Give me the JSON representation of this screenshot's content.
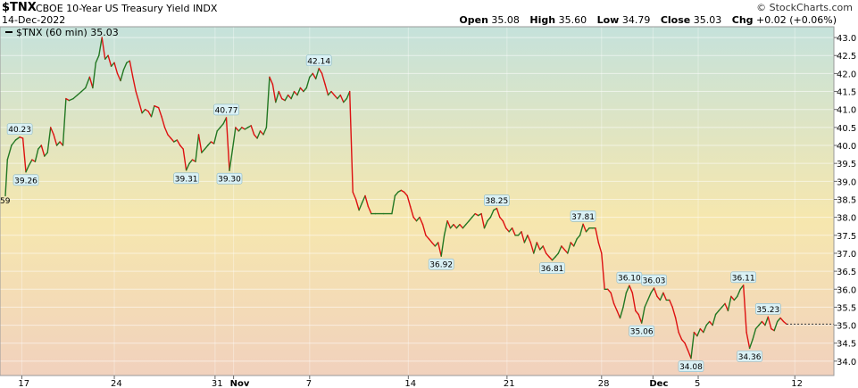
{
  "header": {
    "symbol": "$TNX",
    "name": "CBOE 10-Year US Treasury Yield",
    "exchange": "INDX",
    "date": "14-Dec-2022",
    "watermark": "© StockCharts.com",
    "open_label": "Open",
    "open": "35.08",
    "high_label": "High",
    "high": "35.60",
    "low_label": "Low",
    "low": "34.79",
    "close_label": "Close",
    "close": "35.03",
    "chg_label": "Chg",
    "chg": "+0.02 (+0.06%)"
  },
  "legend": {
    "text": "$TNX (60 min) 35.03"
  },
  "colors": {
    "up": "#227722",
    "down": "#dd1111",
    "bg_top": "#c5e2db",
    "bg_mid": "#f6e7ae",
    "bg_bottom": "#f1d1bd",
    "label_bg": "#daf1f5",
    "label_border": "#88b7c8"
  },
  "chart_data": {
    "type": "line",
    "title": "$TNX (60 min) 35.03",
    "ylim": [
      33.6,
      43.3
    ],
    "y_ticks": [
      "34.0",
      "34.5",
      "35.0",
      "35.5",
      "36.0",
      "36.5",
      "37.0",
      "37.5",
      "38.0",
      "38.5",
      "39.0",
      "39.5",
      "40.0",
      "40.5",
      "41.0",
      "41.5",
      "42.0",
      "42.5",
      "43.0"
    ],
    "x_labels": [
      {
        "label": "17",
        "bold": false,
        "x": 0.8
      },
      {
        "label": "24",
        "bold": false,
        "x": 5.3
      },
      {
        "label": "31",
        "bold": false,
        "x": 10.2
      },
      {
        "label": "Nov",
        "bold": true,
        "x": 11.1
      },
      {
        "label": "7",
        "bold": false,
        "x": 14.8
      },
      {
        "label": "14",
        "bold": false,
        "x": 19.6
      },
      {
        "label": "21",
        "bold": false,
        "x": 24.4
      },
      {
        "label": "28",
        "bold": false,
        "x": 29.0
      },
      {
        "label": "Dec",
        "bold": true,
        "x": 31.5
      },
      {
        "label": "5",
        "bold": false,
        "x": 33.7
      },
      {
        "label": "12",
        "bold": false,
        "x": 38.4
      }
    ],
    "x_range": [
      0,
      40.3
    ],
    "points": [
      [
        0.0,
        38.6
      ],
      [
        0.1,
        39.6
      ],
      [
        0.3,
        40.0
      ],
      [
        0.5,
        40.15
      ],
      [
        0.7,
        40.23
      ],
      [
        0.85,
        40.2
      ],
      [
        1.0,
        39.26
      ],
      [
        1.15,
        39.45
      ],
      [
        1.3,
        39.6
      ],
      [
        1.45,
        39.55
      ],
      [
        1.6,
        39.9
      ],
      [
        1.75,
        40.0
      ],
      [
        1.9,
        39.7
      ],
      [
        2.05,
        39.8
      ],
      [
        2.2,
        40.5
      ],
      [
        2.35,
        40.3
      ],
      [
        2.5,
        40.0
      ],
      [
        2.65,
        40.1
      ],
      [
        2.8,
        40.0
      ],
      [
        2.95,
        41.3
      ],
      [
        3.1,
        41.25
      ],
      [
        3.3,
        41.3
      ],
      [
        3.5,
        41.4
      ],
      [
        3.7,
        41.5
      ],
      [
        3.9,
        41.6
      ],
      [
        4.1,
        41.9
      ],
      [
        4.25,
        41.6
      ],
      [
        4.4,
        42.3
      ],
      [
        4.55,
        42.5
      ],
      [
        4.7,
        43.0
      ],
      [
        4.85,
        42.4
      ],
      [
        5.0,
        42.5
      ],
      [
        5.15,
        42.2
      ],
      [
        5.3,
        42.3
      ],
      [
        5.45,
        42.0
      ],
      [
        5.6,
        41.8
      ],
      [
        5.75,
        42.1
      ],
      [
        5.9,
        42.3
      ],
      [
        6.05,
        42.35
      ],
      [
        6.2,
        41.9
      ],
      [
        6.35,
        41.5
      ],
      [
        6.5,
        41.2
      ],
      [
        6.65,
        40.9
      ],
      [
        6.8,
        41.0
      ],
      [
        6.95,
        40.95
      ],
      [
        7.1,
        40.8
      ],
      [
        7.25,
        41.1
      ],
      [
        7.45,
        41.05
      ],
      [
        7.6,
        40.8
      ],
      [
        7.75,
        40.5
      ],
      [
        7.9,
        40.3
      ],
      [
        8.05,
        40.2
      ],
      [
        8.2,
        40.1
      ],
      [
        8.35,
        40.15
      ],
      [
        8.5,
        40.0
      ],
      [
        8.65,
        39.9
      ],
      [
        8.8,
        39.31
      ],
      [
        8.95,
        39.5
      ],
      [
        9.1,
        39.6
      ],
      [
        9.25,
        39.55
      ],
      [
        9.4,
        40.3
      ],
      [
        9.55,
        39.8
      ],
      [
        9.7,
        39.9
      ],
      [
        9.85,
        40.0
      ],
      [
        10.0,
        40.1
      ],
      [
        10.15,
        40.05
      ],
      [
        10.3,
        40.4
      ],
      [
        10.45,
        40.5
      ],
      [
        10.6,
        40.6
      ],
      [
        10.75,
        40.77
      ],
      [
        10.9,
        39.3
      ],
      [
        11.05,
        39.9
      ],
      [
        11.2,
        40.5
      ],
      [
        11.35,
        40.4
      ],
      [
        11.5,
        40.5
      ],
      [
        11.65,
        40.45
      ],
      [
        11.8,
        40.5
      ],
      [
        11.95,
        40.55
      ],
      [
        12.1,
        40.3
      ],
      [
        12.25,
        40.2
      ],
      [
        12.4,
        40.4
      ],
      [
        12.55,
        40.3
      ],
      [
        12.7,
        40.5
      ],
      [
        12.85,
        41.9
      ],
      [
        13.0,
        41.7
      ],
      [
        13.15,
        41.2
      ],
      [
        13.3,
        41.5
      ],
      [
        13.45,
        41.3
      ],
      [
        13.6,
        41.25
      ],
      [
        13.75,
        41.4
      ],
      [
        13.9,
        41.3
      ],
      [
        14.05,
        41.5
      ],
      [
        14.2,
        41.4
      ],
      [
        14.35,
        41.6
      ],
      [
        14.5,
        41.5
      ],
      [
        14.65,
        41.6
      ],
      [
        14.8,
        41.9
      ],
      [
        14.95,
        42.0
      ],
      [
        15.1,
        41.85
      ],
      [
        15.25,
        42.14
      ],
      [
        15.4,
        42.0
      ],
      [
        15.55,
        41.7
      ],
      [
        15.7,
        41.4
      ],
      [
        15.85,
        41.5
      ],
      [
        16.0,
        41.4
      ],
      [
        16.15,
        41.3
      ],
      [
        16.3,
        41.4
      ],
      [
        16.45,
        41.2
      ],
      [
        16.6,
        41.3
      ],
      [
        16.75,
        41.5
      ],
      [
        16.9,
        38.7
      ],
      [
        17.05,
        38.5
      ],
      [
        17.2,
        38.2
      ],
      [
        17.35,
        38.4
      ],
      [
        17.5,
        38.6
      ],
      [
        17.65,
        38.3
      ],
      [
        17.8,
        38.1
      ],
      [
        18.0,
        38.1
      ],
      [
        18.4,
        38.1
      ],
      [
        18.8,
        38.1
      ],
      [
        18.95,
        38.6
      ],
      [
        19.1,
        38.7
      ],
      [
        19.25,
        38.75
      ],
      [
        19.4,
        38.7
      ],
      [
        19.55,
        38.6
      ],
      [
        19.7,
        38.3
      ],
      [
        19.85,
        38.0
      ],
      [
        20.0,
        37.9
      ],
      [
        20.15,
        38.0
      ],
      [
        20.3,
        37.8
      ],
      [
        20.45,
        37.5
      ],
      [
        20.6,
        37.4
      ],
      [
        20.75,
        37.3
      ],
      [
        20.9,
        37.2
      ],
      [
        21.05,
        37.3
      ],
      [
        21.2,
        36.92
      ],
      [
        21.35,
        37.5
      ],
      [
        21.5,
        37.9
      ],
      [
        21.65,
        37.7
      ],
      [
        21.8,
        37.8
      ],
      [
        21.95,
        37.7
      ],
      [
        22.1,
        37.8
      ],
      [
        22.25,
        37.7
      ],
      [
        22.4,
        37.8
      ],
      [
        22.55,
        37.9
      ],
      [
        22.7,
        38.0
      ],
      [
        22.85,
        38.1
      ],
      [
        23.0,
        38.05
      ],
      [
        23.15,
        38.1
      ],
      [
        23.3,
        37.7
      ],
      [
        23.45,
        37.9
      ],
      [
        23.6,
        38.0
      ],
      [
        23.75,
        38.2
      ],
      [
        23.9,
        38.25
      ],
      [
        24.05,
        38.0
      ],
      [
        24.2,
        37.9
      ],
      [
        24.35,
        37.7
      ],
      [
        24.5,
        37.6
      ],
      [
        24.65,
        37.7
      ],
      [
        24.8,
        37.5
      ],
      [
        24.95,
        37.5
      ],
      [
        25.1,
        37.6
      ],
      [
        25.25,
        37.3
      ],
      [
        25.4,
        37.5
      ],
      [
        25.55,
        37.3
      ],
      [
        25.7,
        37.0
      ],
      [
        25.85,
        37.3
      ],
      [
        26.0,
        37.1
      ],
      [
        26.15,
        37.2
      ],
      [
        26.3,
        37.0
      ],
      [
        26.45,
        36.9
      ],
      [
        26.6,
        36.81
      ],
      [
        26.75,
        36.9
      ],
      [
        26.9,
        37.0
      ],
      [
        27.05,
        37.2
      ],
      [
        27.2,
        37.1
      ],
      [
        27.35,
        37.0
      ],
      [
        27.5,
        37.3
      ],
      [
        27.65,
        37.2
      ],
      [
        27.8,
        37.4
      ],
      [
        27.95,
        37.5
      ],
      [
        28.1,
        37.81
      ],
      [
        28.25,
        37.6
      ],
      [
        28.4,
        37.7
      ],
      [
        28.55,
        37.7
      ],
      [
        28.7,
        37.7
      ],
      [
        28.85,
        37.3
      ],
      [
        29.0,
        37.0
      ],
      [
        29.15,
        36.0
      ],
      [
        29.3,
        36.0
      ],
      [
        29.45,
        35.9
      ],
      [
        29.6,
        35.6
      ],
      [
        29.75,
        35.4
      ],
      [
        29.9,
        35.2
      ],
      [
        30.05,
        35.5
      ],
      [
        30.2,
        35.9
      ],
      [
        30.35,
        36.1
      ],
      [
        30.5,
        35.9
      ],
      [
        30.65,
        35.4
      ],
      [
        30.8,
        35.3
      ],
      [
        30.95,
        35.06
      ],
      [
        31.1,
        35.5
      ],
      [
        31.25,
        35.7
      ],
      [
        31.4,
        35.9
      ],
      [
        31.55,
        36.03
      ],
      [
        31.7,
        35.8
      ],
      [
        31.85,
        35.7
      ],
      [
        32.0,
        35.9
      ],
      [
        32.15,
        35.7
      ],
      [
        32.3,
        35.7
      ],
      [
        32.45,
        35.5
      ],
      [
        32.6,
        35.2
      ],
      [
        32.75,
        34.8
      ],
      [
        32.9,
        34.6
      ],
      [
        33.05,
        34.5
      ],
      [
        33.2,
        34.3
      ],
      [
        33.35,
        34.08
      ],
      [
        33.5,
        34.8
      ],
      [
        33.65,
        34.7
      ],
      [
        33.8,
        34.9
      ],
      [
        33.95,
        34.8
      ],
      [
        34.1,
        35.0
      ],
      [
        34.25,
        35.1
      ],
      [
        34.4,
        35.0
      ],
      [
        34.55,
        35.3
      ],
      [
        34.7,
        35.4
      ],
      [
        34.85,
        35.5
      ],
      [
        35.0,
        35.6
      ],
      [
        35.15,
        35.4
      ],
      [
        35.3,
        35.8
      ],
      [
        35.45,
        35.7
      ],
      [
        35.6,
        35.8
      ],
      [
        35.75,
        36.0
      ],
      [
        35.9,
        36.11
      ],
      [
        36.05,
        34.8
      ],
      [
        36.2,
        34.36
      ],
      [
        36.35,
        34.6
      ],
      [
        36.5,
        34.9
      ],
      [
        36.65,
        35.0
      ],
      [
        36.8,
        35.1
      ],
      [
        36.95,
        35.0
      ],
      [
        37.1,
        35.23
      ],
      [
        37.25,
        34.9
      ],
      [
        37.4,
        34.85
      ],
      [
        37.55,
        35.1
      ],
      [
        37.7,
        35.2
      ],
      [
        37.85,
        35.1
      ],
      [
        38.0,
        35.03
      ]
    ],
    "value_labels": [
      {
        "text": "40.23",
        "x": 0.7,
        "y": 40.23,
        "pos": "above"
      },
      {
        "text": "39.26",
        "x": 1.0,
        "y": 39.26,
        "pos": "below"
      },
      {
        "text": "39.31",
        "x": 8.8,
        "y": 39.31,
        "pos": "below"
      },
      {
        "text": "40.77",
        "x": 10.75,
        "y": 40.77,
        "pos": "above"
      },
      {
        "text": "39.30",
        "x": 10.9,
        "y": 39.3,
        "pos": "below"
      },
      {
        "text": "42.14",
        "x": 15.25,
        "y": 42.14,
        "pos": "above"
      },
      {
        "text": "36.92",
        "x": 21.2,
        "y": 36.92,
        "pos": "below"
      },
      {
        "text": "38.25",
        "x": 23.9,
        "y": 38.25,
        "pos": "above"
      },
      {
        "text": "36.81",
        "x": 26.6,
        "y": 36.81,
        "pos": "below"
      },
      {
        "text": "37.81",
        "x": 28.1,
        "y": 37.81,
        "pos": "above"
      },
      {
        "text": "36.10",
        "x": 30.35,
        "y": 36.1,
        "pos": "above"
      },
      {
        "text": "35.06",
        "x": 30.95,
        "y": 35.06,
        "pos": "below"
      },
      {
        "text": "36.03",
        "x": 31.55,
        "y": 36.03,
        "pos": "above"
      },
      {
        "text": "34.08",
        "x": 33.35,
        "y": 34.08,
        "pos": "below"
      },
      {
        "text": "36.11",
        "x": 35.9,
        "y": 36.11,
        "pos": "above"
      },
      {
        "text": "34.36",
        "x": 36.2,
        "y": 34.36,
        "pos": "below"
      },
      {
        "text": "35.23",
        "x": 37.1,
        "y": 35.23,
        "pos": "above"
      }
    ],
    "left_edge_label": "59",
    "last_value": 35.03
  }
}
